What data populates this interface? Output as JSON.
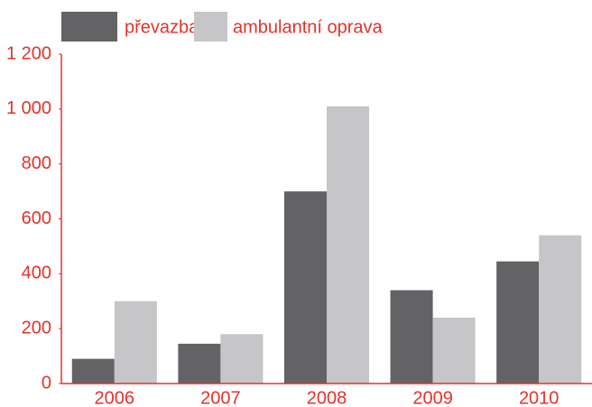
{
  "chart_data": {
    "type": "bar",
    "categories": [
      "2006",
      "2007",
      "2008",
      "2009",
      "2010"
    ],
    "series": [
      {
        "name": "převazba",
        "color": "#636265",
        "values": [
          90,
          145,
          700,
          340,
          445
        ]
      },
      {
        "name": "ambulantní oprava",
        "color": "#c6c6c8",
        "values": [
          300,
          180,
          1010,
          240,
          540
        ]
      }
    ],
    "ylim": [
      0,
      1200
    ],
    "yticks": [
      0,
      200,
      400,
      600,
      800,
      {
        "value": 1000,
        "label": "1 000"
      },
      {
        "value": 1200,
        "label": "1 200"
      }
    ],
    "legend": "top",
    "axis_color": "#e4322b"
  }
}
